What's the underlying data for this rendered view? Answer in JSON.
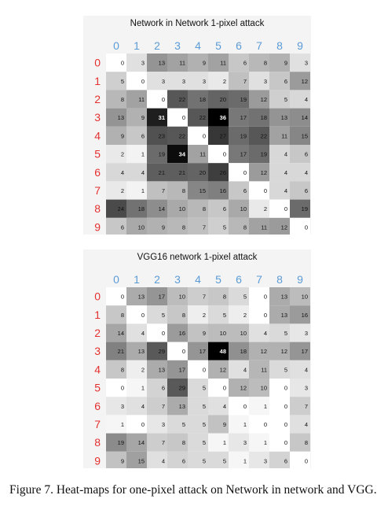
{
  "caption": "Figure 7. Heat-maps for one-pixel attack on Network in network and VGG.",
  "colors": {
    "axis_label": "#e53030",
    "axis_header": "#5b9bd5"
  },
  "chart_data": [
    {
      "type": "heatmap",
      "title": "Network in Network 1-pixel attack",
      "x": [
        "0",
        "1",
        "2",
        "3",
        "4",
        "5",
        "6",
        "7",
        "8",
        "9"
      ],
      "y": [
        "0",
        "1",
        "2",
        "3",
        "4",
        "5",
        "6",
        "7",
        "8",
        "9"
      ],
      "vmax": 36,
      "values": [
        [
          0,
          3,
          13,
          11,
          9,
          11,
          6,
          8,
          9,
          3
        ],
        [
          5,
          0,
          3,
          3,
          3,
          2,
          7,
          3,
          6,
          12
        ],
        [
          8,
          11,
          0,
          22,
          18,
          20,
          19,
          12,
          5,
          4
        ],
        [
          13,
          9,
          31,
          0,
          22,
          36,
          17,
          18,
          13,
          14
        ],
        [
          9,
          6,
          23,
          22,
          0,
          27,
          19,
          22,
          11,
          15
        ],
        [
          2,
          1,
          19,
          34,
          11,
          0,
          17,
          19,
          4,
          6
        ],
        [
          4,
          4,
          21,
          21,
          20,
          26,
          0,
          12,
          4,
          4
        ],
        [
          2,
          1,
          7,
          8,
          15,
          16,
          6,
          0,
          4,
          6
        ],
        [
          24,
          18,
          14,
          10,
          8,
          6,
          10,
          2,
          0,
          19
        ],
        [
          6,
          10,
          9,
          8,
          7,
          5,
          8,
          11,
          12,
          0
        ]
      ]
    },
    {
      "type": "heatmap",
      "title": "VGG16 network 1-pixel attack",
      "x": [
        "0",
        "1",
        "2",
        "3",
        "4",
        "5",
        "6",
        "7",
        "8",
        "9"
      ],
      "y": [
        "0",
        "1",
        "2",
        "3",
        "4",
        "5",
        "6",
        "7",
        "8",
        "9"
      ],
      "vmax": 48,
      "values": [
        [
          0,
          13,
          17,
          10,
          7,
          8,
          5,
          0,
          13,
          10
        ],
        [
          8,
          0,
          5,
          8,
          2,
          5,
          2,
          0,
          13,
          16
        ],
        [
          14,
          4,
          0,
          16,
          9,
          10,
          10,
          4,
          5,
          3
        ],
        [
          21,
          13,
          29,
          0,
          17,
          48,
          18,
          12,
          12,
          17
        ],
        [
          8,
          2,
          13,
          17,
          0,
          12,
          4,
          11,
          5,
          4
        ],
        [
          0,
          1,
          6,
          29,
          5,
          0,
          12,
          10,
          0,
          3
        ],
        [
          3,
          4,
          7,
          13,
          5,
          4,
          0,
          1,
          0,
          7
        ],
        [
          1,
          0,
          3,
          5,
          5,
          9,
          1,
          0,
          0,
          4
        ],
        [
          19,
          14,
          7,
          8,
          5,
          1,
          3,
          1,
          0,
          8
        ],
        [
          9,
          15,
          4,
          6,
          5,
          5,
          1,
          3,
          6,
          0
        ]
      ]
    }
  ]
}
